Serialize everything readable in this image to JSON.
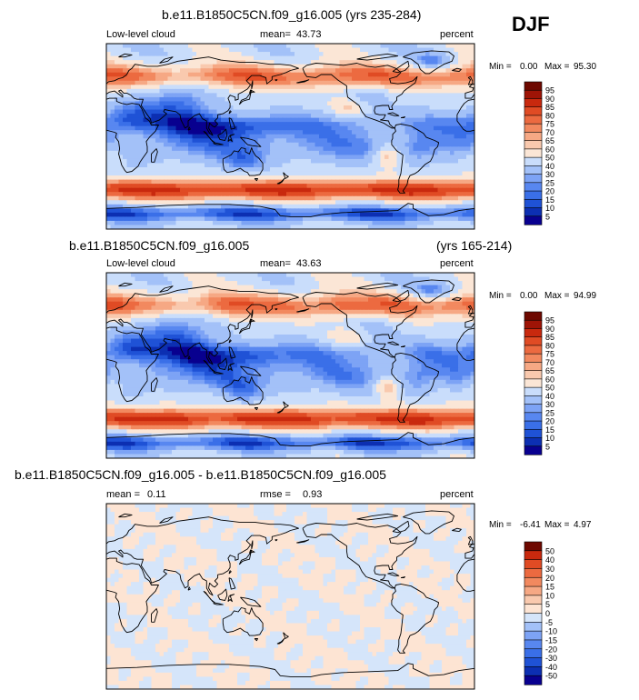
{
  "season": "DJF",
  "chart_data": [
    {
      "type": "heatmap",
      "title": "b.e11.B1850C5CN.f09_g16.005 (yrs 235-284)",
      "left_label": "Low-level cloud",
      "mean_label": "mean=",
      "mean_value": "43.73",
      "units": "percent",
      "min_label": "Min =",
      "min_value": "0.00",
      "max_label": "Max =",
      "max_value": "95.30",
      "xlim": [
        -180,
        180
      ],
      "ylim": [
        -90,
        90
      ],
      "levels": [
        "5",
        "10",
        "15",
        "20",
        "25",
        "30",
        "40",
        "50",
        "60",
        "65",
        "70",
        "75",
        "80",
        "85",
        "90",
        "95"
      ],
      "colors": [
        "#08008f",
        "#0c2fb2",
        "#1f52d6",
        "#3a6fe8",
        "#5887f0",
        "#7da3f5",
        "#a3c1f8",
        "#c9ddfb",
        "#fbe6d6",
        "#f9c9ae",
        "#f6a884",
        "#f2895f",
        "#ec6a40",
        "#e04b24",
        "#c9290e",
        "#9e1406",
        "#6e0800"
      ]
    },
    {
      "type": "heatmap",
      "title": "b.e11.B1850C5CN.f09_g16.005",
      "title_right": "(yrs 165-214)",
      "left_label": "Low-level cloud",
      "mean_label": "mean=",
      "mean_value": "43.63",
      "units": "percent",
      "min_label": "Min =",
      "min_value": "0.00",
      "max_label": "Max =",
      "max_value": "94.99",
      "xlim": [
        -180,
        180
      ],
      "ylim": [
        -90,
        90
      ],
      "levels": [
        "5",
        "10",
        "15",
        "20",
        "25",
        "30",
        "40",
        "50",
        "60",
        "65",
        "70",
        "75",
        "80",
        "85",
        "90",
        "95"
      ],
      "colors": [
        "#08008f",
        "#0c2fb2",
        "#1f52d6",
        "#3a6fe8",
        "#5887f0",
        "#7da3f5",
        "#a3c1f8",
        "#c9ddfb",
        "#fbe6d6",
        "#f9c9ae",
        "#f6a884",
        "#f2895f",
        "#ec6a40",
        "#e04b24",
        "#c9290e",
        "#9e1406",
        "#6e0800"
      ]
    },
    {
      "type": "heatmap",
      "title": "b.e11.B1850C5CN.f09_g16.005 - b.e11.B1850C5CN.f09_g16.005",
      "mean_label": "mean =",
      "mean_value": "0.11",
      "rmse_label": "rmse =",
      "rmse_value": "0.93",
      "units": "percent",
      "min_label": "Min =",
      "min_value": "-6.41",
      "max_label": "Max =",
      "max_value": "4.97",
      "xlim": [
        -180,
        180
      ],
      "ylim": [
        -90,
        90
      ],
      "levels": [
        "-50",
        "-40",
        "-30",
        "-20",
        "-15",
        "-10",
        "-5",
        "0",
        "5",
        "10",
        "15",
        "20",
        "30",
        "40",
        "50"
      ],
      "colors": [
        "#08008f",
        "#0c2fb2",
        "#1f52d6",
        "#3a6fe8",
        "#5887f0",
        "#7da3f5",
        "#a3c1f8",
        "#d5e5fa",
        "#fde4d3",
        "#f9c9ae",
        "#f6a884",
        "#f2895f",
        "#ec6a40",
        "#e04b24",
        "#c9290e",
        "#6e0800"
      ]
    }
  ]
}
